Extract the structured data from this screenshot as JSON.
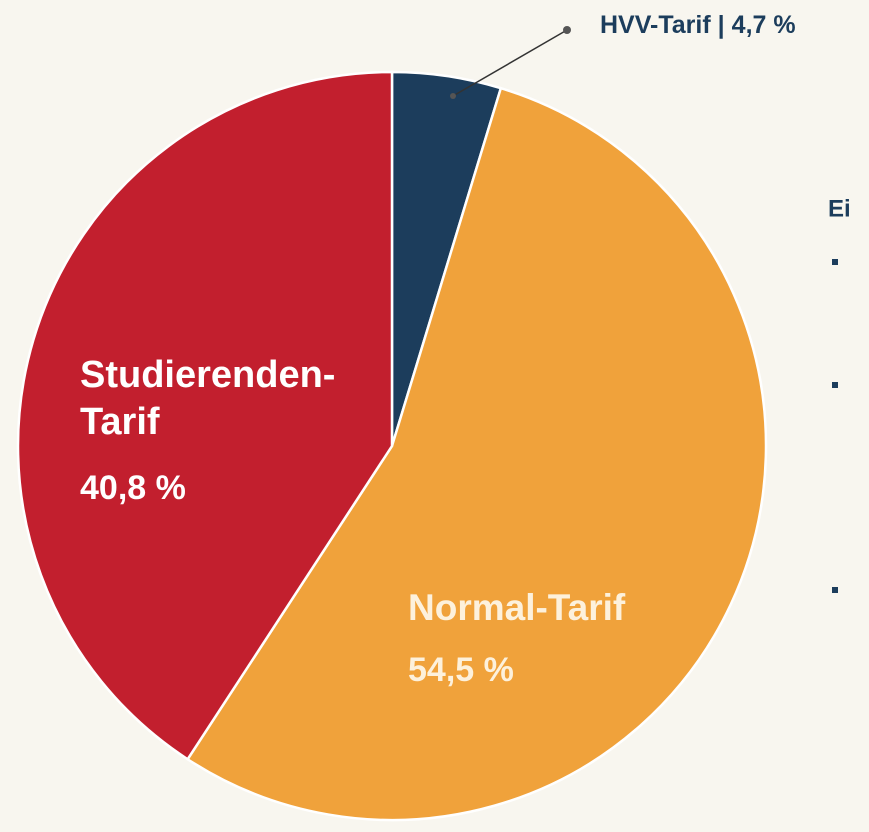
{
  "chart_data": {
    "type": "pie",
    "categories": [
      "HVV-Tarif",
      "Normal-Tarif",
      "Studierenden-Tarif"
    ],
    "values": [
      4.7,
      54.5,
      40.8
    ],
    "value_labels": [
      "4,7 %",
      "54,5 %",
      "40,8 %"
    ],
    "colors": [
      "#1c3d5c",
      "#f0a23b",
      "#c21f2e"
    ],
    "label_separator": "|",
    "side_text": "Ei"
  }
}
